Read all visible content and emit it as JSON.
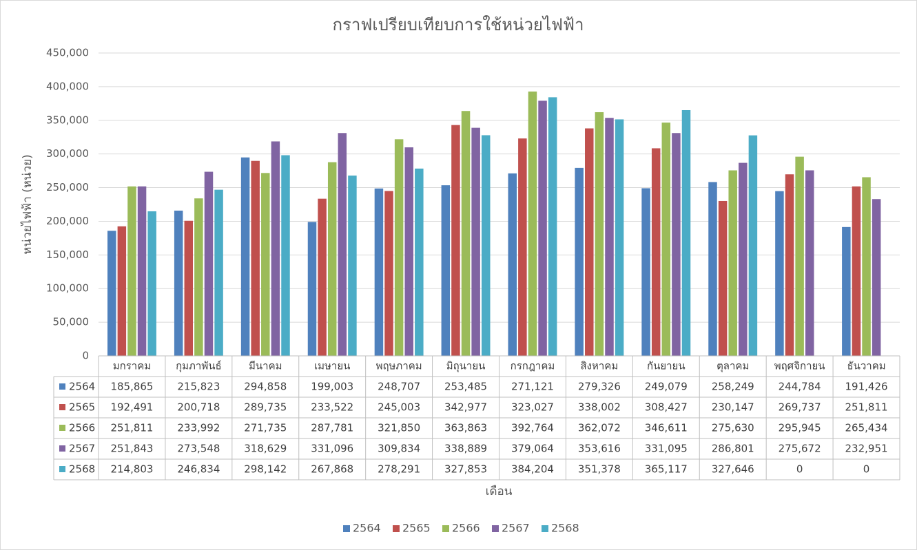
{
  "chart_data": {
    "type": "bar",
    "title": "กราฟเปรียบเทียบการใช้หน่วยไฟฟ้า",
    "x_label": "เดือน",
    "y_label": "หน่วยไฟฟ้า (หน่วย)",
    "categories": [
      "มกราคม",
      "กุมภาพันธ์",
      "มีนาคม",
      "เมษายน",
      "พฤษภาคม",
      "มิถุนายน",
      "กรกฎาคม",
      "สิงหาคม",
      "กันยายน",
      "ตุลาคม",
      "พฤศจิกายน",
      "ธันวาคม"
    ],
    "ylim": [
      0,
      450000
    ],
    "yticks": [
      0,
      {
        "value": 50000,
        "label": "50,000"
      },
      {
        "value": 100000,
        "label": "100,000"
      },
      {
        "value": 150000,
        "label": "150,000"
      },
      {
        "value": 200000,
        "label": "200,000"
      },
      {
        "value": 250000,
        "label": "250,000"
      },
      {
        "value": 300000,
        "label": "300,000"
      },
      {
        "value": 350000,
        "label": "350,000"
      },
      {
        "value": 400000,
        "label": "400,000"
      },
      {
        "value": 450000,
        "label": "450,000"
      }
    ],
    "grid": true,
    "legend": "bottom",
    "series": [
      {
        "name": "2564",
        "color": "#4f81bd",
        "values": [
          185865,
          215823,
          294858,
          199003,
          248707,
          253485,
          271121,
          279326,
          249079,
          258249,
          244784,
          191426
        ],
        "value_labels": [
          "185,865",
          "215,823",
          "294,858",
          "199,003",
          "248,707",
          "253,485",
          "271,121",
          "279,326",
          "249,079",
          "258,249",
          "244,784",
          "191,426"
        ]
      },
      {
        "name": "2565",
        "color": "#c0504d",
        "values": [
          192491,
          200718,
          289735,
          233522,
          245003,
          342977,
          323027,
          338002,
          308427,
          230147,
          269737,
          251811
        ],
        "value_labels": [
          "192,491",
          "200,718",
          "289,735",
          "233,522",
          "245,003",
          "342,977",
          "323,027",
          "338,002",
          "308,427",
          "230,147",
          "269,737",
          "251,811"
        ]
      },
      {
        "name": "2566",
        "color": "#9bbb59",
        "values": [
          251811,
          233992,
          271735,
          287781,
          321850,
          363863,
          392764,
          362072,
          346611,
          275630,
          295945,
          265434
        ],
        "value_labels": [
          "251,811",
          "233,992",
          "271,735",
          "287,781",
          "321,850",
          "363,863",
          "392,764",
          "362,072",
          "346,611",
          "275,630",
          "295,945",
          "265,434"
        ]
      },
      {
        "name": "2567",
        "color": "#8064a2",
        "values": [
          251843,
          273548,
          318629,
          331096,
          309834,
          338889,
          379064,
          353616,
          331095,
          286801,
          275672,
          232951
        ],
        "value_labels": [
          "251,843",
          "273,548",
          "318,629",
          "331,096",
          "309,834",
          "338,889",
          "379,064",
          "353,616",
          "331,095",
          "286,801",
          "275,672",
          "232,951"
        ]
      },
      {
        "name": "2568",
        "color": "#4bacc6",
        "values": [
          214803,
          246834,
          298142,
          267868,
          278291,
          327853,
          384204,
          351378,
          365117,
          327646,
          0,
          0
        ],
        "value_labels": [
          "214,803",
          "246,834",
          "298,142",
          "267,868",
          "278,291",
          "327,853",
          "384,204",
          "351,378",
          "365,117",
          "327,646",
          "0",
          "0"
        ]
      }
    ]
  }
}
